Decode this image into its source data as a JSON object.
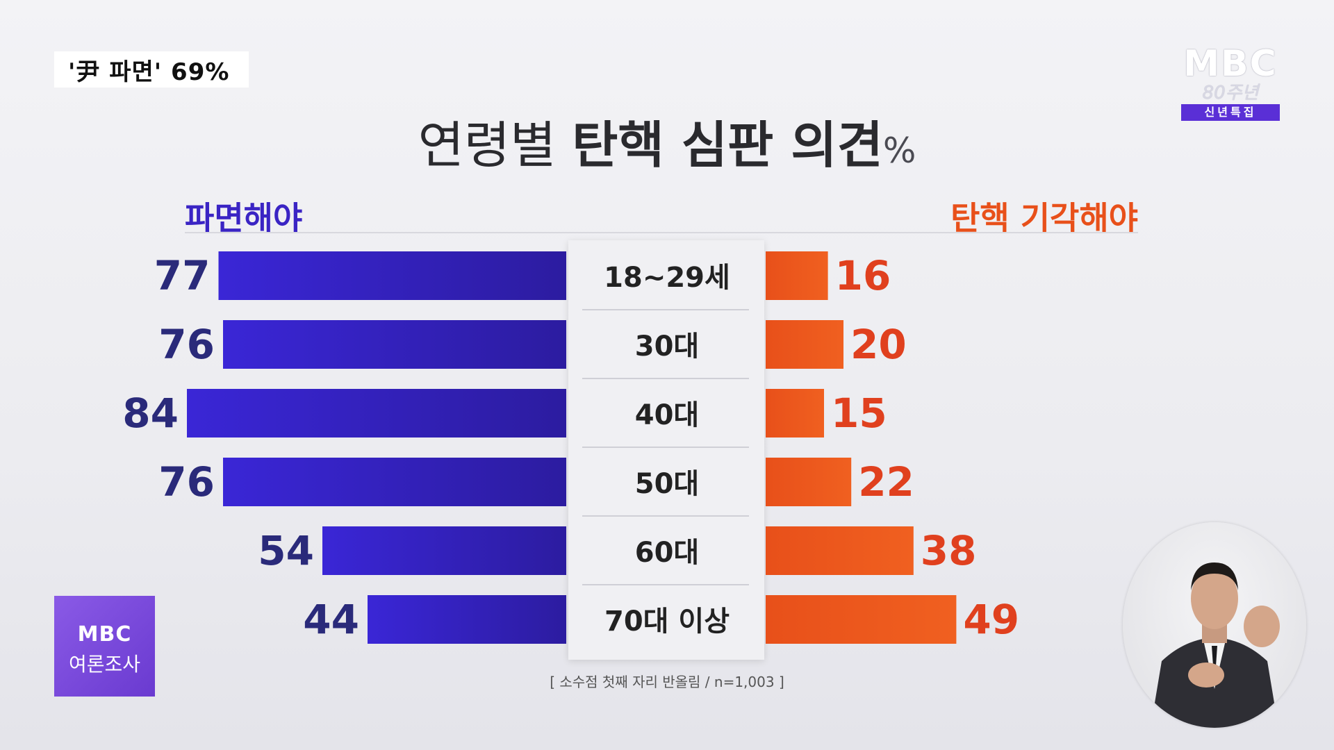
{
  "caption": "'尹 파면' 69%",
  "logo": {
    "text": "MBC",
    "subtext": "80주년",
    "badge": "신년특집"
  },
  "title": {
    "part1": "연령별",
    "part2": "탄핵 심판 의견",
    "unit": "%"
  },
  "poll_logo": {
    "top": "MBC",
    "bottom": "여론조사"
  },
  "note": "[ 소수점 첫째 자리 반올림 / n=1,003 ]",
  "colors": {
    "left": "#3a24c4",
    "right": "#e8501a"
  },
  "chart_data": {
    "type": "bar",
    "title": "연령별 탄핵 심판 의견 %",
    "categories": [
      "18~29세",
      "30대",
      "40대",
      "50대",
      "60대",
      "70대 이상"
    ],
    "series": [
      {
        "name": "파면해야",
        "values": [
          77,
          76,
          84,
          76,
          54,
          44
        ]
      },
      {
        "name": "탄핵 기각해야",
        "values": [
          16,
          20,
          15,
          22,
          38,
          49
        ]
      }
    ]
  }
}
